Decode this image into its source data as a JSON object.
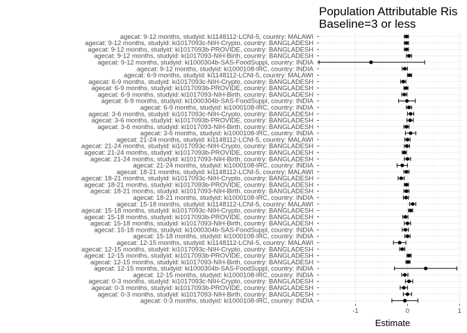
{
  "chart_data": {
    "type": "forest",
    "title_lines": [
      "Population Attributable Ris",
      "Baseline=3 or less"
    ],
    "xlabel": "Estimate",
    "ylabel": "",
    "xlim": [
      -1.7,
      1.05
    ],
    "xticks": [
      -1,
      0,
      1
    ],
    "xtick_labels": [
      "-1",
      "0",
      "1"
    ],
    "grid": true,
    "rows": [
      {
        "label": "agecat: 9-12 months, studyid: ki1148112-LCNI-5, country: MALAWI",
        "est": -0.02,
        "lo": -0.06,
        "hi": 0.02
      },
      {
        "label": "agecat: 9-12 months, studyid: ki1017093c-NIH-Crypto, country: BANGLADESH",
        "est": -0.02,
        "lo": -0.06,
        "hi": 0.02
      },
      {
        "label": "agecat: 9-12 months, studyid: ki1017093b-PROVIDE, country: BANGLADESH",
        "est": -0.02,
        "lo": -0.06,
        "hi": 0.02
      },
      {
        "label": "agecat: 9-12 months, studyid: ki1017093-NIH-Birth, country: BANGLADESH",
        "est": 0.03,
        "lo": -0.02,
        "hi": 0.08
      },
      {
        "label": "agecat: 9-12 months, studyid: ki1000304b-SAS-FoodSuppl, country: INDIA",
        "est": -0.7,
        "lo": -1.7,
        "hi": 0.33
      },
      {
        "label": "agecat: 9-12 months, studyid: ki1000108-IRC, country: INDIA",
        "est": -0.05,
        "lo": -0.1,
        "hi": 0.0
      },
      {
        "label": "agecat: 6-9 months, studyid: ki1148112-LCNI-5, country: MALAWI",
        "est": 0.04,
        "lo": 0.0,
        "hi": 0.08
      },
      {
        "label": "agecat: 6-9 months, studyid: ki1017093c-NIH-Crypto, country: BANGLADESH",
        "est": -0.08,
        "lo": -0.13,
        "hi": -0.03
      },
      {
        "label": "agecat: 6-9 months, studyid: ki1017093b-PROVIDE, country: BANGLADESH",
        "est": -0.03,
        "lo": -0.07,
        "hi": 0.01
      },
      {
        "label": "agecat: 6-9 months, studyid: ki1017093-NIH-Birth, country: BANGLADESH",
        "est": -0.06,
        "lo": -0.11,
        "hi": -0.01
      },
      {
        "label": "agecat: 6-9 months, studyid: ki1000304b-SAS-FoodSuppl, country: INDIA",
        "est": -0.01,
        "lo": -0.17,
        "hi": 0.15
      },
      {
        "label": "agecat: 6-9 months, studyid: ki1000108-IRC, country: INDIA",
        "est": 0.03,
        "lo": -0.02,
        "hi": 0.08
      },
      {
        "label": "agecat: 3-6 months, studyid: ki1017093c-NIH-Crypto, country: BANGLADESH",
        "est": 0.06,
        "lo": 0.0,
        "hi": 0.12
      },
      {
        "label": "agecat: 3-6 months, studyid: ki1017093b-PROVIDE, country: BANGLADESH",
        "est": 0.05,
        "lo": -0.01,
        "hi": 0.11
      },
      {
        "label": "agecat: 3-6 months, studyid: ki1017093-NIH-Birth, country: BANGLADESH",
        "est": -0.02,
        "lo": -0.07,
        "hi": 0.03
      },
      {
        "label": "agecat: 3-6 months, studyid: ki1000108-IRC, country: INDIA",
        "est": 0.06,
        "lo": -0.04,
        "hi": 0.16
      },
      {
        "label": "agecat: 21-24 months, studyid: ki1148112-LCNI-5, country: MALAWI",
        "est": 0.0,
        "lo": -0.05,
        "hi": 0.05
      },
      {
        "label": "agecat: 21-24 months, studyid: ki1017093c-NIH-Crypto, country: BANGLADESH",
        "est": -0.01,
        "lo": -0.06,
        "hi": 0.04
      },
      {
        "label": "agecat: 21-24 months, studyid: ki1017093b-PROVIDE, country: BANGLADESH",
        "est": -0.06,
        "lo": -0.1,
        "hi": -0.02
      },
      {
        "label": "agecat: 21-24 months, studyid: ki1017093-NIH-Birth, country: BANGLADESH",
        "est": 0.0,
        "lo": -0.06,
        "hi": 0.06
      },
      {
        "label": "agecat: 21-24 months, studyid: ki1000108-IRC, country: INDIA",
        "est": -0.1,
        "lo": -0.2,
        "hi": 0.0
      },
      {
        "label": "agecat: 18-21 months, studyid: ki1148112-LCNI-5, country: MALAWI",
        "est": -0.02,
        "lo": -0.07,
        "hi": 0.03
      },
      {
        "label": "agecat: 18-21 months, studyid: ki1017093c-NIH-Crypto, country: BANGLADESH",
        "est": -0.12,
        "lo": -0.18,
        "hi": -0.06
      },
      {
        "label": "agecat: 18-21 months, studyid: ki1017093b-PROVIDE, country: BANGLADESH",
        "est": -0.02,
        "lo": -0.06,
        "hi": 0.02
      },
      {
        "label": "agecat: 18-21 months, studyid: ki1017093-NIH-Birth, country: BANGLADESH",
        "est": -0.02,
        "lo": -0.07,
        "hi": 0.03
      },
      {
        "label": "agecat: 18-21 months, studyid: ki1000108-IRC, country: INDIA",
        "est": -0.03,
        "lo": -0.08,
        "hi": 0.02
      },
      {
        "label": "agecat: 15-18 months, studyid: ki1148112-LCNI-5, country: MALAWI",
        "est": 0.1,
        "lo": 0.04,
        "hi": 0.16
      },
      {
        "label": "agecat: 15-18 months, studyid: ki1017093c-NIH-Crypto, country: BANGLADESH",
        "est": 0.06,
        "lo": 0.02,
        "hi": 0.1
      },
      {
        "label": "agecat: 15-18 months, studyid: ki1017093b-PROVIDE, country: BANGLADESH",
        "est": -0.04,
        "lo": -0.09,
        "hi": 0.01
      },
      {
        "label": "agecat: 15-18 months, studyid: ki1017093-NIH-Birth, country: BANGLADESH",
        "est": 0.0,
        "lo": -0.06,
        "hi": 0.06
      },
      {
        "label": "agecat: 15-18 months, studyid: ki1000304b-SAS-FoodSuppl, country: INDIA",
        "est": -0.04,
        "lo": -0.1,
        "hi": 0.02
      },
      {
        "label": "agecat: 15-18 months, studyid: ki1000108-IRC, country: INDIA",
        "est": 0.0,
        "lo": -0.05,
        "hi": 0.05
      },
      {
        "label": "agecat: 12-15 months, studyid: ki1148112-LCNI-5, country: MALAWI",
        "est": -0.15,
        "lo": -0.27,
        "hi": -0.03
      },
      {
        "label": "agecat: 12-15 months, studyid: ki1017093c-NIH-Crypto, country: BANGLADESH",
        "est": -0.1,
        "lo": -0.15,
        "hi": -0.05
      },
      {
        "label": "agecat: 12-15 months, studyid: ki1017093b-PROVIDE, country: BANGLADESH",
        "est": 0.03,
        "lo": -0.01,
        "hi": 0.07
      },
      {
        "label": "agecat: 12-15 months, studyid: ki1017093-NIH-Birth, country: BANGLADESH",
        "est": 0.01,
        "lo": -0.03,
        "hi": 0.05
      },
      {
        "label": "agecat: 12-15 months, studyid: ki1000304b-SAS-FoodSuppl, country: INDIA",
        "est": 0.35,
        "lo": -0.25,
        "hi": 0.95
      },
      {
        "label": "agecat: 12-15 months, studyid: ki1000108-IRC, country: INDIA",
        "est": -0.05,
        "lo": -0.11,
        "hi": 0.01
      },
      {
        "label": "agecat: 0-3 months, studyid: ki1017093c-NIH-Crypto, country: BANGLADESH",
        "est": 0.03,
        "lo": -0.04,
        "hi": 0.1
      },
      {
        "label": "agecat: 0-3 months, studyid: ki1017093b-PROVIDE, country: BANGLADESH",
        "est": -0.07,
        "lo": -0.14,
        "hi": 0.0
      },
      {
        "label": "agecat: 0-3 months, studyid: ki1017093-NIH-Birth, country: BANGLADESH",
        "est": 0.0,
        "lo": -0.08,
        "hi": 0.08
      },
      {
        "label": "agecat: 0-3 months, studyid: ki1000108-IRC, country: INDIA",
        "est": -0.05,
        "lo": -0.3,
        "hi": 0.2
      }
    ]
  }
}
